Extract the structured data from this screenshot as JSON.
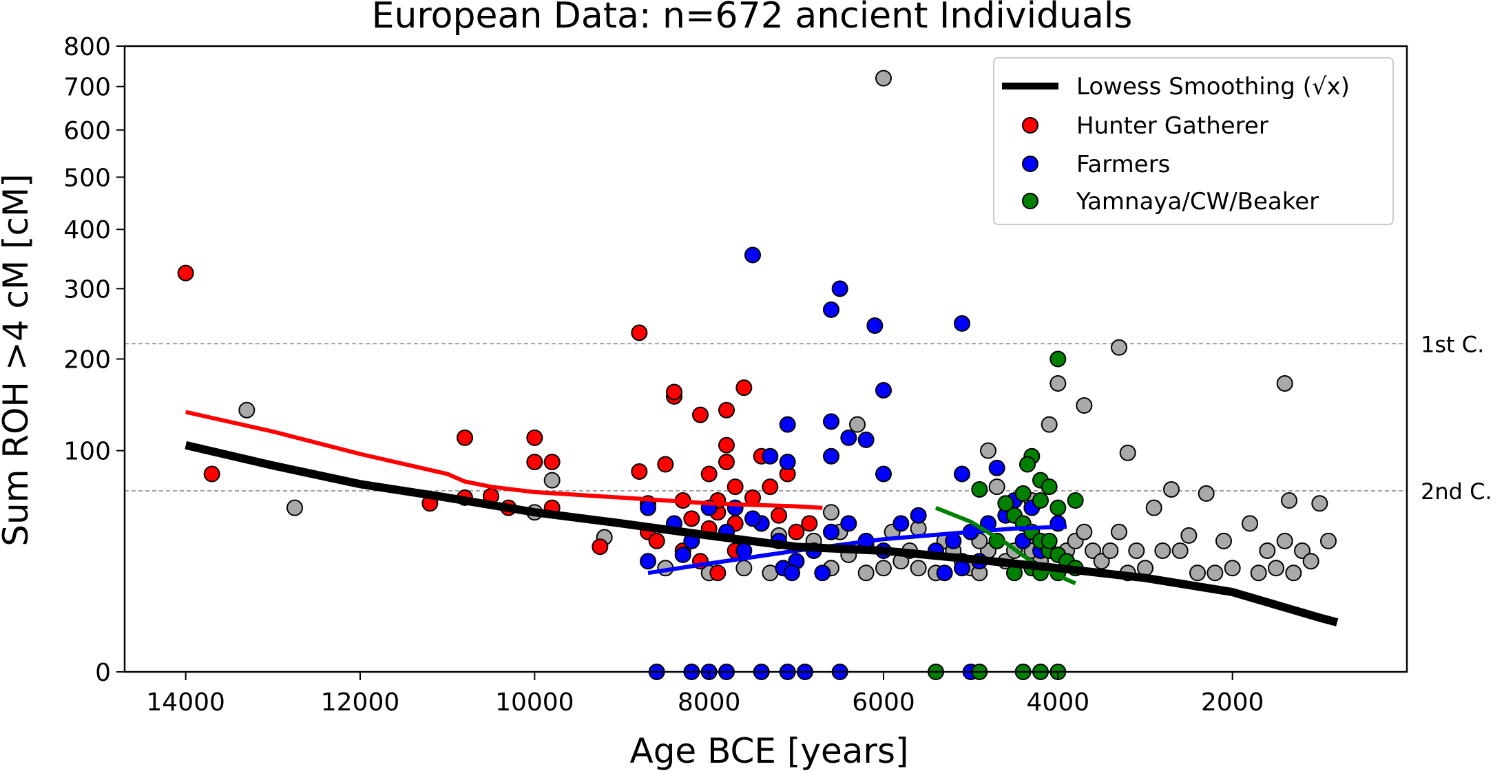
{
  "chart_data": {
    "type": "scatter",
    "title": "European Data: n=672 ancient Individuals",
    "xlabel": "Age BCE [years]",
    "ylabel": "Sum ROH >4 cM [cM]",
    "xlim": [
      14700,
      0
    ],
    "ylim": [
      0,
      800
    ],
    "y_scale": "sqrt",
    "x_ticks": [
      14000,
      12000,
      10000,
      8000,
      6000,
      4000,
      2000
    ],
    "y_ticks": [
      0,
      100,
      200,
      300,
      400,
      500,
      600,
      700,
      800
    ],
    "grid": false,
    "legend_position": "top-right",
    "colors": {
      "hunter_gatherer": "#ff0000",
      "farmers": "#0000ff",
      "yamnaya": "#008000",
      "other": "#a9a9a9",
      "smoothing": "#000000"
    },
    "legend": [
      {
        "key": "smoothing",
        "label": "Lowess Smoothing (√x)"
      },
      {
        "key": "hunter_gatherer",
        "label": "Hunter Gatherer"
      },
      {
        "key": "farmers",
        "label": "Farmers"
      },
      {
        "key": "yamnaya",
        "label": "Yamnaya/CW/Beaker"
      }
    ],
    "reference_lines": [
      {
        "label": "1st C.",
        "value": 220
      },
      {
        "label": "2nd C.",
        "value": 67
      }
    ],
    "series": [
      {
        "key": "other",
        "points": [
          [
            13300,
            140
          ],
          [
            12750,
            55
          ],
          [
            9800,
            75
          ],
          [
            10000,
            52
          ],
          [
            9200,
            37
          ],
          [
            8500,
            22
          ],
          [
            8000,
            20
          ],
          [
            7600,
            22
          ],
          [
            7300,
            20
          ],
          [
            7000,
            25
          ],
          [
            6600,
            22
          ],
          [
            6400,
            30
          ],
          [
            6200,
            20
          ],
          [
            6000,
            22
          ],
          [
            6000,
            720
          ],
          [
            6600,
            52
          ],
          [
            6400,
            28
          ],
          [
            6200,
            33
          ],
          [
            6300,
            125
          ],
          [
            5900,
            40
          ],
          [
            5800,
            25
          ],
          [
            5700,
            30
          ],
          [
            5600,
            22
          ],
          [
            5400,
            20
          ],
          [
            5300,
            35
          ],
          [
            5200,
            30
          ],
          [
            5100,
            25
          ],
          [
            5000,
            22
          ],
          [
            4900,
            20
          ],
          [
            4800,
            30
          ],
          [
            4700,
            35
          ],
          [
            4800,
            100
          ],
          [
            4700,
            70
          ],
          [
            4600,
            25
          ],
          [
            4500,
            30
          ],
          [
            4400,
            35
          ],
          [
            4300,
            30
          ],
          [
            4200,
            25
          ],
          [
            4100,
            125
          ],
          [
            4000,
            170
          ],
          [
            3900,
            30
          ],
          [
            3800,
            35
          ],
          [
            3700,
            40
          ],
          [
            3700,
            145
          ],
          [
            3600,
            30
          ],
          [
            3500,
            25
          ],
          [
            3400,
            30
          ],
          [
            3300,
            40
          ],
          [
            3300,
            215
          ],
          [
            3200,
            98
          ],
          [
            3200,
            20
          ],
          [
            3100,
            30
          ],
          [
            2900,
            55
          ],
          [
            2800,
            30
          ],
          [
            2700,
            68
          ],
          [
            2600,
            30
          ],
          [
            2500,
            38
          ],
          [
            2400,
            20
          ],
          [
            2300,
            65
          ],
          [
            2200,
            20
          ],
          [
            2100,
            35
          ],
          [
            2000,
            22
          ],
          [
            1800,
            45
          ],
          [
            1700,
            20
          ],
          [
            1600,
            30
          ],
          [
            1500,
            22
          ],
          [
            1400,
            35
          ],
          [
            1400,
            170
          ],
          [
            1350,
            60
          ],
          [
            1300,
            20
          ],
          [
            1200,
            30
          ],
          [
            1100,
            25
          ],
          [
            1000,
            58
          ],
          [
            900,
            35
          ],
          [
            7200,
            38
          ],
          [
            6800,
            35
          ],
          [
            6500,
            40
          ],
          [
            5600,
            42
          ],
          [
            4900,
            35
          ],
          [
            4300,
            60
          ],
          [
            3000,
            22
          ]
        ]
      },
      {
        "key": "hunter_gatherer",
        "points": [
          [
            14000,
            325
          ],
          [
            13700,
            80
          ],
          [
            11200,
            58
          ],
          [
            10800,
            112
          ],
          [
            10800,
            62
          ],
          [
            10500,
            63
          ],
          [
            10300,
            55
          ],
          [
            10000,
            90
          ],
          [
            10000,
            112
          ],
          [
            9800,
            90
          ],
          [
            9800,
            55
          ],
          [
            9250,
            32
          ],
          [
            8800,
            235
          ],
          [
            8800,
            82
          ],
          [
            8700,
            58
          ],
          [
            8700,
            40
          ],
          [
            8500,
            88
          ],
          [
            8400,
            155
          ],
          [
            8400,
            160
          ],
          [
            8300,
            60
          ],
          [
            8200,
            48
          ],
          [
            8100,
            135
          ],
          [
            8000,
            80
          ],
          [
            8000,
            42
          ],
          [
            7900,
            52
          ],
          [
            7900,
            60
          ],
          [
            7800,
            105
          ],
          [
            7800,
            140
          ],
          [
            7800,
            90
          ],
          [
            7700,
            70
          ],
          [
            7700,
            45
          ],
          [
            7600,
            165
          ],
          [
            7500,
            62
          ],
          [
            7400,
            95
          ],
          [
            7300,
            70
          ],
          [
            7200,
            50
          ],
          [
            7100,
            80
          ],
          [
            7000,
            40
          ],
          [
            6850,
            45
          ],
          [
            8600,
            35
          ],
          [
            8300,
            30
          ],
          [
            7700,
            30
          ],
          [
            7900,
            20
          ],
          [
            7400,
            45
          ],
          [
            8100,
            25
          ]
        ]
      },
      {
        "key": "farmers",
        "points": [
          [
            7500,
            355
          ],
          [
            6500,
            300
          ],
          [
            6600,
            268
          ],
          [
            6100,
            245
          ],
          [
            5100,
            248
          ],
          [
            6000,
            162
          ],
          [
            7100,
            125
          ],
          [
            6600,
            128
          ],
          [
            6400,
            112
          ],
          [
            6200,
            110
          ],
          [
            6600,
            95
          ],
          [
            7300,
            95
          ],
          [
            7100,
            90
          ],
          [
            5100,
            80
          ],
          [
            4700,
            85
          ],
          [
            6000,
            80
          ],
          [
            8700,
            55
          ],
          [
            8400,
            45
          ],
          [
            8200,
            35
          ],
          [
            8000,
            55
          ],
          [
            7800,
            40
          ],
          [
            7600,
            30
          ],
          [
            7400,
            45
          ],
          [
            7200,
            35
          ],
          [
            7000,
            25
          ],
          [
            6800,
            30
          ],
          [
            6600,
            40
          ],
          [
            6400,
            45
          ],
          [
            6200,
            35
          ],
          [
            6000,
            30
          ],
          [
            5800,
            45
          ],
          [
            5600,
            50
          ],
          [
            5400,
            30
          ],
          [
            5200,
            35
          ],
          [
            5000,
            40
          ],
          [
            4800,
            45
          ],
          [
            4600,
            50
          ],
          [
            4400,
            35
          ],
          [
            4200,
            30
          ],
          [
            4000,
            45
          ],
          [
            8700,
            25
          ],
          [
            8300,
            28
          ],
          [
            7700,
            55
          ],
          [
            7500,
            48
          ],
          [
            7150,
            22
          ],
          [
            7050,
            20
          ],
          [
            6700,
            20
          ],
          [
            5300,
            20
          ],
          [
            5100,
            22
          ],
          [
            4900,
            25
          ],
          [
            4500,
            60
          ],
          [
            4300,
            55
          ],
          [
            8000,
            0
          ],
          [
            7800,
            0
          ],
          [
            7400,
            0
          ],
          [
            6500,
            0
          ],
          [
            5000,
            0
          ],
          [
            8600,
            0
          ],
          [
            8200,
            0
          ],
          [
            7100,
            0
          ],
          [
            6900,
            0
          ]
        ]
      },
      {
        "key": "yamnaya",
        "points": [
          [
            4000,
            200
          ],
          [
            4300,
            95
          ],
          [
            4350,
            88
          ],
          [
            4200,
            75
          ],
          [
            4100,
            70
          ],
          [
            4900,
            68
          ],
          [
            4400,
            65
          ],
          [
            4200,
            60
          ],
          [
            4000,
            55
          ],
          [
            3800,
            60
          ],
          [
            4600,
            58
          ],
          [
            4500,
            50
          ],
          [
            4400,
            45
          ],
          [
            4300,
            40
          ],
          [
            4200,
            35
          ],
          [
            4100,
            30
          ],
          [
            4000,
            28
          ],
          [
            3900,
            25
          ],
          [
            3800,
            22
          ],
          [
            4500,
            20
          ],
          [
            4300,
            22
          ],
          [
            4200,
            20
          ],
          [
            4000,
            20
          ],
          [
            4100,
            35
          ],
          [
            4700,
            35
          ],
          [
            5400,
            0
          ],
          [
            4900,
            0
          ],
          [
            4400,
            0
          ],
          [
            4200,
            0
          ],
          [
            4000,
            0
          ]
        ]
      }
    ],
    "curves": [
      {
        "key": "smoothing",
        "points": [
          [
            14000,
            105
          ],
          [
            13000,
            87
          ],
          [
            12000,
            72
          ],
          [
            11000,
            62
          ],
          [
            10000,
            52
          ],
          [
            9000,
            45
          ],
          [
            8000,
            38
          ],
          [
            7000,
            32
          ],
          [
            6000,
            30
          ],
          [
            5000,
            26
          ],
          [
            4000,
            22
          ],
          [
            3000,
            18
          ],
          [
            2000,
            13
          ],
          [
            1000,
            6
          ],
          [
            800,
            5
          ]
        ]
      },
      {
        "key": "hunter_gatherer",
        "points": [
          [
            14000,
            138
          ],
          [
            13000,
            118
          ],
          [
            12000,
            97
          ],
          [
            11000,
            80
          ],
          [
            10800,
            74
          ],
          [
            10500,
            70
          ],
          [
            10000,
            66
          ],
          [
            9000,
            62
          ],
          [
            8000,
            58
          ],
          [
            7000,
            56
          ],
          [
            6700,
            55
          ]
        ]
      },
      {
        "key": "farmers",
        "points": [
          [
            8700,
            20
          ],
          [
            8000,
            24
          ],
          [
            7000,
            30
          ],
          [
            6000,
            36
          ],
          [
            5000,
            40
          ],
          [
            4500,
            42
          ],
          [
            3900,
            43
          ]
        ]
      },
      {
        "key": "yamnaya",
        "points": [
          [
            5400,
            55
          ],
          [
            5000,
            46
          ],
          [
            4600,
            34
          ],
          [
            4200,
            22
          ],
          [
            3800,
            16
          ]
        ]
      }
    ]
  }
}
